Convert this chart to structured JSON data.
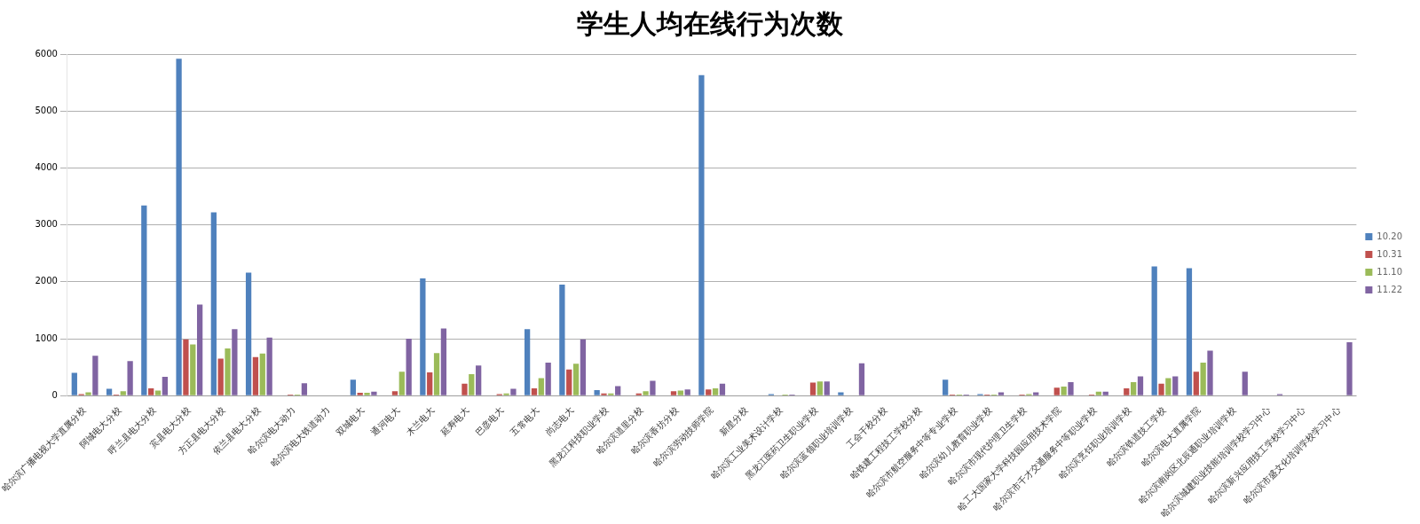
{
  "chart_data": {
    "type": "bar",
    "title": "学生人均在线行为次数",
    "categories": [
      "哈尔滨广播电视大学直属分校",
      "阿城电大分校",
      "呼兰县电大分校",
      "宾县电大分校",
      "方正县电大分校",
      "依兰县电大分校",
      "哈尔滨电大动力",
      "哈尔滨电大铁道动力",
      "双城电大",
      "通河电大",
      "木兰电大",
      "延寿电大",
      "巴彦电大",
      "五常电大",
      "尚志电大",
      "黑龙江科技职业学校",
      "哈尔滨道里分校",
      "哈尔滨香坊分校",
      "哈尔滨劳动技师学院",
      "新星分校",
      "哈尔滨工业美术设计学校",
      "黑龙江医药卫生职业学校",
      "哈尔滨蓝领职业培训学校",
      "工会干校分校",
      "哈铁建工程技工学校分校",
      "哈尔滨市航空服务中等专业学校",
      "哈尔滨幼儿教育职业学校",
      "哈尔滨市现代护理卫生学校",
      "哈工大国家大学科技园应用技术学院",
      "哈尔滨市千才交通服务中等职业学校",
      "哈尔滨烹饪职业培训学校",
      "哈尔滨铁道技工学校",
      "哈尔滨电大直属学院",
      "哈尔滨南岗区北辰通职业培训学校",
      "哈尔滨城建职业技能培训学校学习中心",
      "哈尔滨新兴应用技工学校学习中心",
      "哈尔滨市盛文化培训学校学习中心"
    ],
    "series": [
      {
        "name": "10.20",
        "color": "#4f81bd",
        "values": [
          400,
          120,
          3340,
          5920,
          3220,
          2160,
          0,
          10,
          280,
          10,
          2060,
          10,
          10,
          1170,
          1950,
          100,
          10,
          10,
          5630,
          10,
          30,
          10,
          60,
          10,
          10,
          280,
          30,
          10,
          10,
          10,
          10,
          2270,
          2240,
          10,
          10,
          10,
          10
        ]
      },
      {
        "name": "10.31",
        "color": "#c0504d",
        "values": [
          30,
          20,
          130,
          990,
          650,
          680,
          20,
          10,
          50,
          80,
          410,
          210,
          30,
          130,
          460,
          40,
          40,
          80,
          110,
          10,
          10,
          230,
          10,
          10,
          10,
          20,
          20,
          20,
          140,
          20,
          130,
          210,
          420,
          10,
          10,
          10,
          10
        ]
      },
      {
        "name": "11.10",
        "color": "#9bbb59",
        "values": [
          60,
          80,
          90,
          900,
          830,
          740,
          20,
          10,
          50,
          420,
          750,
          380,
          40,
          310,
          560,
          40,
          80,
          90,
          130,
          10,
          20,
          250,
          10,
          10,
          10,
          20,
          20,
          30,
          160,
          70,
          240,
          310,
          580,
          10,
          10,
          10,
          10
        ]
      },
      {
        "name": "11.22",
        "color": "#8064a2",
        "values": [
          700,
          610,
          330,
          1600,
          1170,
          1020,
          220,
          10,
          70,
          1000,
          1180,
          530,
          120,
          580,
          990,
          170,
          260,
          110,
          210,
          10,
          20,
          250,
          570,
          10,
          10,
          20,
          60,
          60,
          240,
          70,
          340,
          340,
          790,
          420,
          30,
          10,
          940
        ]
      }
    ],
    "ylim": [
      0,
      6000
    ],
    "yticks": [
      0,
      1000,
      2000,
      3000,
      4000,
      5000,
      6000
    ],
    "grid": "y",
    "legend": "right"
  }
}
